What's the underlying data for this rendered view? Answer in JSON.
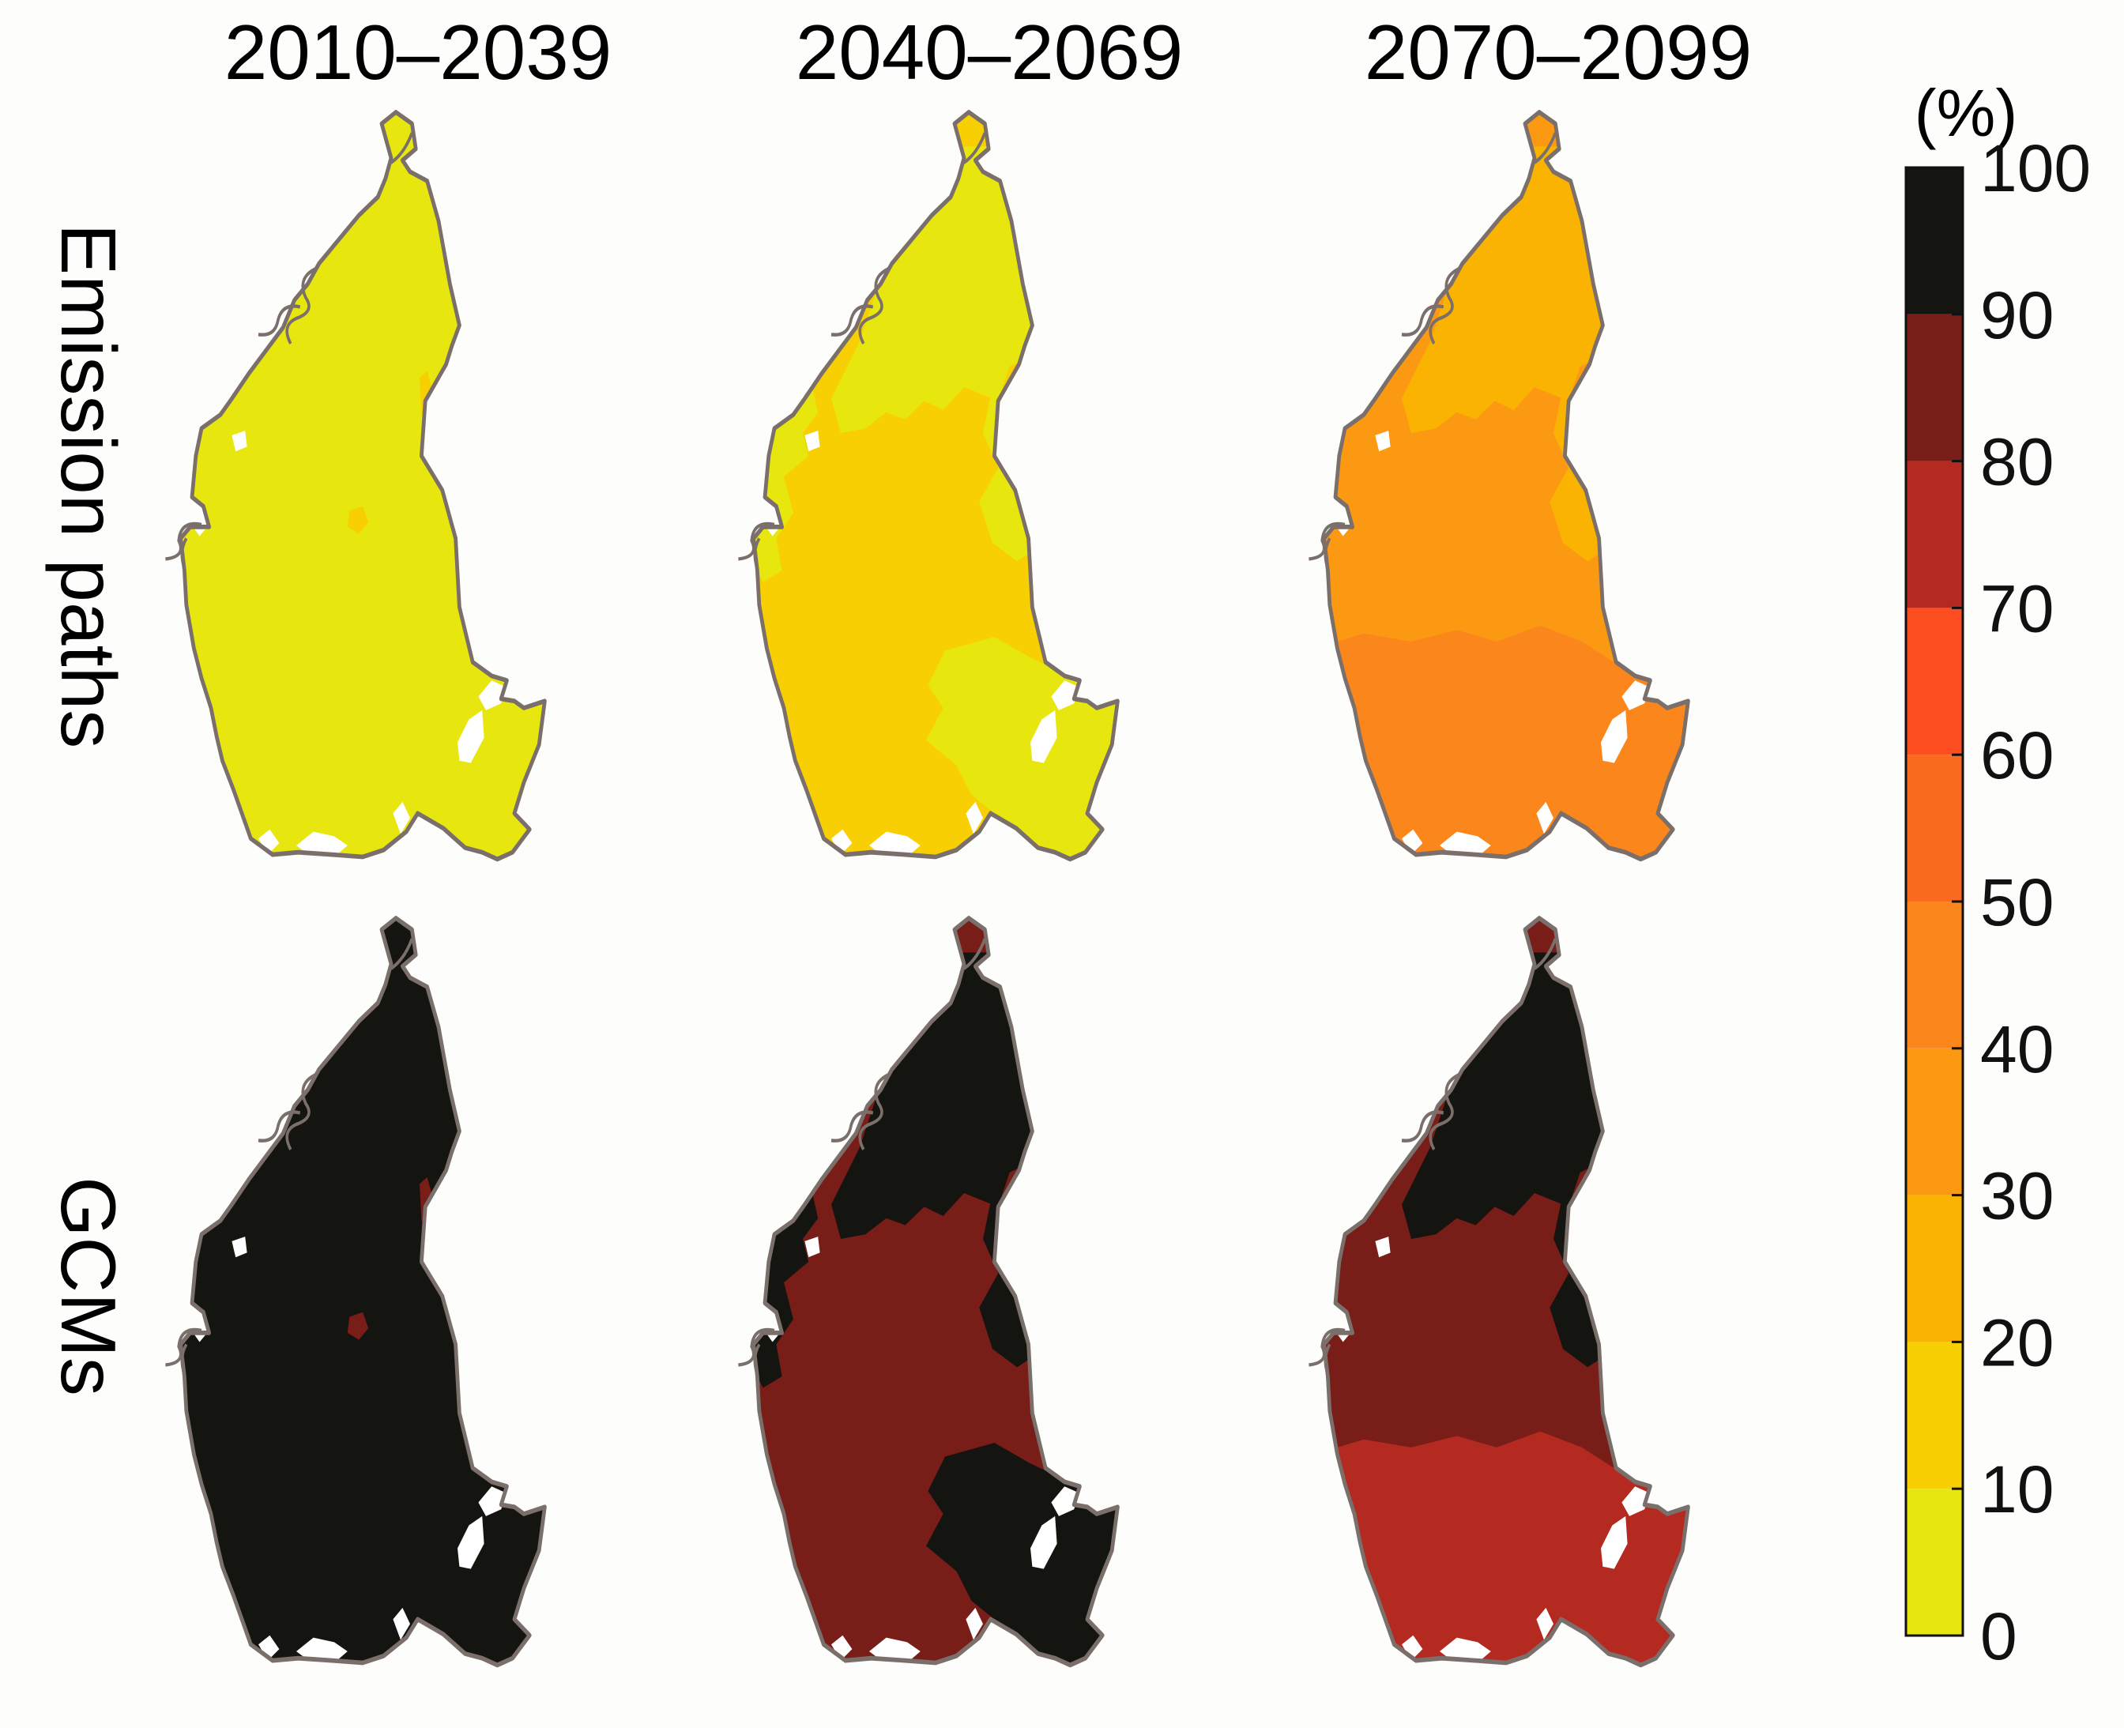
{
  "columns": [
    "2010–2039",
    "2040–2069",
    "2070–2099"
  ],
  "rows": [
    "Emission paths",
    "GCMs"
  ],
  "legend": {
    "unit": "(%)",
    "ticks": [
      "0",
      "10",
      "20",
      "30",
      "40",
      "50",
      "60",
      "70",
      "80",
      "90",
      "100"
    ],
    "bins": [
      {
        "from": 0,
        "to": 10,
        "color": "#e8e60f"
      },
      {
        "from": 10,
        "to": 20,
        "color": "#f7cf02"
      },
      {
        "from": 20,
        "to": 30,
        "color": "#fbb302"
      },
      {
        "from": 30,
        "to": 40,
        "color": "#fb9a12"
      },
      {
        "from": 40,
        "to": 50,
        "color": "#fb861b"
      },
      {
        "from": 50,
        "to": 60,
        "color": "#fb6a1e"
      },
      {
        "from": 60,
        "to": 70,
        "color": "#fc4e20"
      },
      {
        "from": 70,
        "to": 80,
        "color": "#b52a20"
      },
      {
        "from": 80,
        "to": 90,
        "color": "#781d18"
      },
      {
        "from": 90,
        "to": 100,
        "color": "#141410"
      }
    ]
  },
  "outline_color": "#7a6f6a",
  "panels": [
    {
      "row": "Emission paths",
      "column": "2010–2039",
      "base_bin": "0–10",
      "zones": [
        {
          "bin": "10–20",
          "shape": "patch-east"
        },
        {
          "bin": "10–20",
          "shape": "patch-center"
        }
      ]
    },
    {
      "row": "Emission paths",
      "column": "2040–2069",
      "base_bin": "10–20",
      "zones": [
        {
          "bin": "0–10",
          "shape": "north"
        },
        {
          "bin": "0–10",
          "shape": "west-coast"
        },
        {
          "bin": "0–10",
          "shape": "east-strip"
        },
        {
          "bin": "0–10",
          "shape": "southeast"
        }
      ]
    },
    {
      "row": "Emission paths",
      "column": "2070–2099",
      "base_bin": "30–40",
      "zones": [
        {
          "bin": "20–30",
          "shape": "north"
        },
        {
          "bin": "20–30",
          "shape": "east-strip"
        },
        {
          "bin": "40–50",
          "shape": "south"
        }
      ]
    },
    {
      "row": "GCMs",
      "column": "2010–2039",
      "base_bin": "90–100",
      "zones": [
        {
          "bin": "80–90",
          "shape": "patch-east"
        },
        {
          "bin": "80–90",
          "shape": "patch-center"
        }
      ]
    },
    {
      "row": "GCMs",
      "column": "2040–2069",
      "base_bin": "80–90",
      "zones": [
        {
          "bin": "90–100",
          "shape": "north"
        },
        {
          "bin": "90–100",
          "shape": "west-coast"
        },
        {
          "bin": "90–100",
          "shape": "east-strip"
        },
        {
          "bin": "90–100",
          "shape": "southeast"
        }
      ]
    },
    {
      "row": "GCMs",
      "column": "2070–2099",
      "base_bin": "80–90",
      "zones": [
        {
          "bin": "90–100",
          "shape": "north"
        },
        {
          "bin": "90–100",
          "shape": "east-strip"
        },
        {
          "bin": "70–80",
          "shape": "south"
        }
      ]
    }
  ]
}
